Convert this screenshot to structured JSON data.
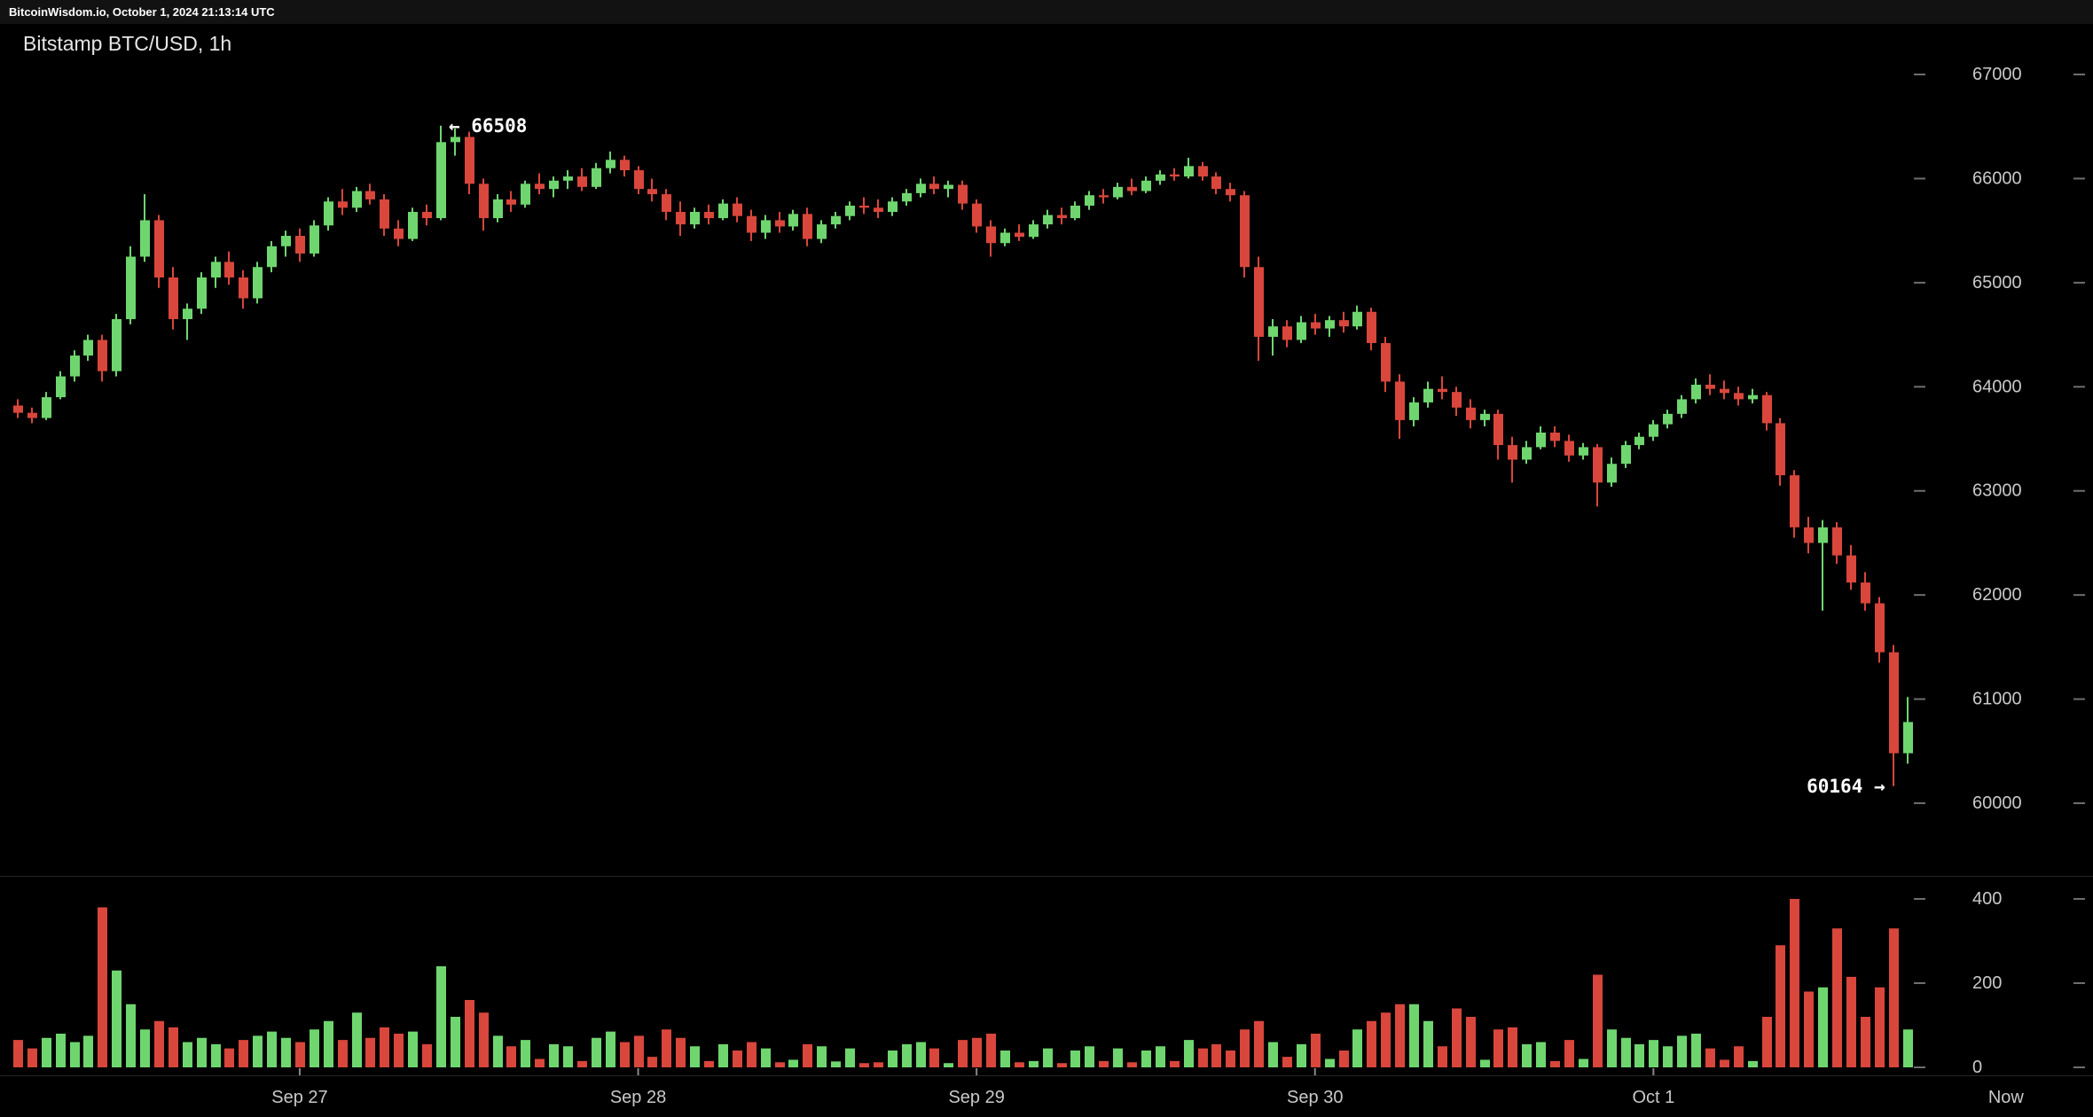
{
  "header": {
    "status_line": "BitcoinWisdom.io, October 1, 2024 21:13:14 UTC"
  },
  "chart": {
    "title": "Bitstamp BTC/USD, 1h"
  },
  "colors": {
    "up": "#6fd66f",
    "down": "#d9463c",
    "axis_text": "#c9c9c9",
    "tick_dash": "#6e6e6e",
    "day_tick": "#888888",
    "separator": "#262626",
    "annotation": "#ffffff",
    "background": "#000000"
  },
  "chart_data": {
    "type": "candlestick",
    "exchange": "Bitstamp",
    "pair": "BTC/USD",
    "interval": "1h",
    "title": "Bitstamp BTC/USD, 1h",
    "y_axis": {
      "ticks": [
        67000,
        66000,
        65000,
        64000,
        63000,
        62000,
        61000,
        60000
      ]
    },
    "volume_axis": {
      "ticks": [
        400,
        200,
        0
      ]
    },
    "x_axis": {
      "labels": [
        {
          "label": "Sep 27",
          "index": 20,
          "day_tick": true
        },
        {
          "label": "Sep 28",
          "index": 44,
          "day_tick": true
        },
        {
          "label": "Sep 29",
          "index": 68,
          "day_tick": true
        },
        {
          "label": "Sep 30",
          "index": 92,
          "day_tick": true
        },
        {
          "label": "Oct 1",
          "index": 116,
          "day_tick": true
        },
        {
          "label": "Now",
          "index": 141,
          "day_tick": false
        }
      ]
    },
    "annotations": [
      {
        "text": "← 66508",
        "index": 30,
        "price": 66508,
        "placement": "right"
      },
      {
        "text": "60164 →",
        "index": 133,
        "price": 60164,
        "placement": "left"
      }
    ],
    "session_high": 66508,
    "session_low": 60164,
    "candles_format": [
      "open",
      "high",
      "low",
      "close",
      "volume"
    ],
    "candles": [
      [
        63820,
        63880,
        63700,
        63750,
        65
      ],
      [
        63750,
        63800,
        63650,
        63700,
        45
      ],
      [
        63700,
        63950,
        63680,
        63900,
        70
      ],
      [
        63900,
        64150,
        63880,
        64100,
        80
      ],
      [
        64100,
        64350,
        64050,
        64300,
        60
      ],
      [
        64300,
        64500,
        64250,
        64450,
        75
      ],
      [
        64450,
        64500,
        64050,
        64150,
        380
      ],
      [
        64150,
        64700,
        64100,
        64650,
        230
      ],
      [
        64650,
        65350,
        64600,
        65250,
        150
      ],
      [
        65250,
        65850,
        65200,
        65600,
        90
      ],
      [
        65600,
        65650,
        64950,
        65050,
        110
      ],
      [
        65050,
        65150,
        64550,
        64650,
        95
      ],
      [
        64650,
        64800,
        64450,
        64750,
        60
      ],
      [
        64750,
        65100,
        64700,
        65050,
        70
      ],
      [
        65050,
        65250,
        64950,
        65200,
        55
      ],
      [
        65200,
        65300,
        64980,
        65050,
        45
      ],
      [
        65050,
        65120,
        64750,
        64850,
        65
      ],
      [
        64850,
        65200,
        64800,
        65150,
        75
      ],
      [
        65150,
        65400,
        65100,
        65350,
        85
      ],
      [
        65350,
        65500,
        65250,
        65450,
        70
      ],
      [
        65450,
        65520,
        65200,
        65280,
        60
      ],
      [
        65280,
        65600,
        65250,
        65550,
        90
      ],
      [
        65550,
        65820,
        65500,
        65780,
        110
      ],
      [
        65780,
        65900,
        65650,
        65720,
        65
      ],
      [
        65720,
        65920,
        65680,
        65880,
        130
      ],
      [
        65880,
        65950,
        65750,
        65800,
        70
      ],
      [
        65800,
        65850,
        65450,
        65520,
        95
      ],
      [
        65520,
        65600,
        65350,
        65420,
        80
      ],
      [
        65420,
        65720,
        65400,
        65680,
        85
      ],
      [
        65680,
        65750,
        65550,
        65620,
        55
      ],
      [
        65620,
        66508,
        65600,
        66350,
        240
      ],
      [
        66350,
        66480,
        66220,
        66400,
        120
      ],
      [
        66400,
        66450,
        65850,
        65950,
        160
      ],
      [
        65950,
        66000,
        65500,
        65620,
        130
      ],
      [
        65620,
        65850,
        65580,
        65800,
        75
      ],
      [
        65800,
        65880,
        65680,
        65750,
        50
      ],
      [
        65750,
        65980,
        65720,
        65950,
        65
      ],
      [
        65950,
        66050,
        65850,
        65900,
        20
      ],
      [
        65900,
        66020,
        65820,
        65980,
        55
      ],
      [
        65980,
        66080,
        65900,
        66020,
        50
      ],
      [
        66020,
        66100,
        65880,
        65920,
        15
      ],
      [
        65920,
        66150,
        65900,
        66100,
        70
      ],
      [
        66100,
        66260,
        66050,
        66180,
        85
      ],
      [
        66180,
        66220,
        66020,
        66080,
        60
      ],
      [
        66080,
        66120,
        65850,
        65900,
        75
      ],
      [
        65900,
        66000,
        65780,
        65850,
        25
      ],
      [
        65850,
        65900,
        65600,
        65680,
        90
      ],
      [
        65680,
        65780,
        65450,
        65560,
        70
      ],
      [
        65560,
        65720,
        65520,
        65680,
        50
      ],
      [
        65680,
        65750,
        65560,
        65620,
        15
      ],
      [
        65620,
        65800,
        65600,
        65760,
        55
      ],
      [
        65760,
        65820,
        65580,
        65640,
        40
      ],
      [
        65640,
        65700,
        65400,
        65480,
        60
      ],
      [
        65480,
        65650,
        65420,
        65600,
        45
      ],
      [
        65600,
        65680,
        65480,
        65540,
        12
      ],
      [
        65540,
        65700,
        65500,
        65660,
        18
      ],
      [
        65660,
        65720,
        65350,
        65420,
        55
      ],
      [
        65420,
        65600,
        65380,
        65560,
        50
      ],
      [
        65560,
        65680,
        65520,
        65640,
        14
      ],
      [
        65640,
        65780,
        65600,
        65740,
        45
      ],
      [
        65740,
        65820,
        65660,
        65720,
        10
      ],
      [
        65720,
        65800,
        65620,
        65680,
        12
      ],
      [
        65680,
        65820,
        65640,
        65780,
        40
      ],
      [
        65780,
        65900,
        65740,
        65860,
        55
      ],
      [
        65860,
        66000,
        65820,
        65950,
        60
      ],
      [
        65950,
        66020,
        65850,
        65900,
        45
      ],
      [
        65900,
        65980,
        65820,
        65940,
        10
      ],
      [
        65940,
        65980,
        65700,
        65760,
        65
      ],
      [
        65760,
        65800,
        65480,
        65540,
        70
      ],
      [
        65540,
        65600,
        65250,
        65380,
        80
      ],
      [
        65380,
        65520,
        65350,
        65480,
        40
      ],
      [
        65480,
        65560,
        65400,
        65440,
        12
      ],
      [
        65440,
        65600,
        65420,
        65560,
        15
      ],
      [
        65560,
        65700,
        65520,
        65650,
        45
      ],
      [
        65650,
        65720,
        65560,
        65620,
        10
      ],
      [
        65620,
        65780,
        65600,
        65740,
        40
      ],
      [
        65740,
        65880,
        65700,
        65840,
        50
      ],
      [
        65840,
        65900,
        65760,
        65820,
        15
      ],
      [
        65820,
        65960,
        65800,
        65920,
        45
      ],
      [
        65920,
        66000,
        65840,
        65880,
        12
      ],
      [
        65880,
        66020,
        65860,
        65980,
        40
      ],
      [
        65980,
        66080,
        65940,
        66040,
        50
      ],
      [
        66040,
        66100,
        65980,
        66020,
        15
      ],
      [
        66020,
        66200,
        66000,
        66120,
        65
      ],
      [
        66120,
        66160,
        65980,
        66020,
        45
      ],
      [
        66020,
        66060,
        65850,
        65900,
        55
      ],
      [
        65900,
        65960,
        65780,
        65840,
        40
      ],
      [
        65840,
        65880,
        65050,
        65150,
        90
      ],
      [
        65150,
        65250,
        64250,
        64480,
        110
      ],
      [
        64480,
        64650,
        64300,
        64580,
        60
      ],
      [
        64580,
        64640,
        64380,
        64450,
        25
      ],
      [
        64450,
        64680,
        64420,
        64620,
        55
      ],
      [
        64620,
        64700,
        64500,
        64560,
        80
      ],
      [
        64560,
        64680,
        64480,
        64640,
        20
      ],
      [
        64640,
        64720,
        64520,
        64580,
        40
      ],
      [
        64580,
        64780,
        64550,
        64720,
        90
      ],
      [
        64720,
        64760,
        64350,
        64420,
        110
      ],
      [
        64420,
        64480,
        63950,
        64050,
        130
      ],
      [
        64050,
        64120,
        63500,
        63680,
        150
      ],
      [
        63680,
        63900,
        63620,
        63850,
        150
      ],
      [
        63850,
        64050,
        63800,
        63980,
        110
      ],
      [
        63980,
        64100,
        63880,
        63950,
        50
      ],
      [
        63950,
        64000,
        63720,
        63800,
        140
      ],
      [
        63800,
        63880,
        63600,
        63680,
        120
      ],
      [
        63680,
        63780,
        63620,
        63740,
        18
      ],
      [
        63740,
        63780,
        63300,
        63440,
        90
      ],
      [
        63440,
        63520,
        63080,
        63300,
        95
      ],
      [
        63300,
        63480,
        63260,
        63420,
        55
      ],
      [
        63420,
        63620,
        63400,
        63560,
        60
      ],
      [
        63560,
        63620,
        63420,
        63480,
        15
      ],
      [
        63480,
        63540,
        63280,
        63340,
        65
      ],
      [
        63340,
        63460,
        63300,
        63420,
        20
      ],
      [
        63420,
        63450,
        62850,
        63080,
        220
      ],
      [
        63080,
        63320,
        63040,
        63260,
        90
      ],
      [
        63260,
        63480,
        63220,
        63440,
        70
      ],
      [
        63440,
        63560,
        63400,
        63520,
        55
      ],
      [
        63520,
        63680,
        63480,
        63640,
        65
      ],
      [
        63640,
        63780,
        63600,
        63740,
        50
      ],
      [
        63740,
        63920,
        63700,
        63880,
        75
      ],
      [
        63880,
        64080,
        63840,
        64020,
        80
      ],
      [
        64020,
        64120,
        63920,
        63980,
        45
      ],
      [
        63980,
        64060,
        63880,
        63940,
        18
      ],
      [
        63940,
        64000,
        63820,
        63880,
        50
      ],
      [
        63880,
        63980,
        63840,
        63920,
        15
      ],
      [
        63920,
        63950,
        63580,
        63650,
        120
      ],
      [
        63650,
        63700,
        63050,
        63150,
        290
      ],
      [
        63150,
        63200,
        62550,
        62650,
        400
      ],
      [
        62650,
        62750,
        62400,
        62500,
        180
      ],
      [
        62500,
        62720,
        61850,
        62650,
        190
      ],
      [
        62650,
        62700,
        62300,
        62380,
        330
      ],
      [
        62380,
        62480,
        62050,
        62120,
        215
      ],
      [
        62120,
        62220,
        61850,
        61920,
        120
      ],
      [
        61920,
        61980,
        61350,
        61450,
        190
      ],
      [
        61450,
        61520,
        60164,
        60480,
        330
      ],
      [
        60480,
        61020,
        60380,
        60780,
        90
      ]
    ]
  }
}
